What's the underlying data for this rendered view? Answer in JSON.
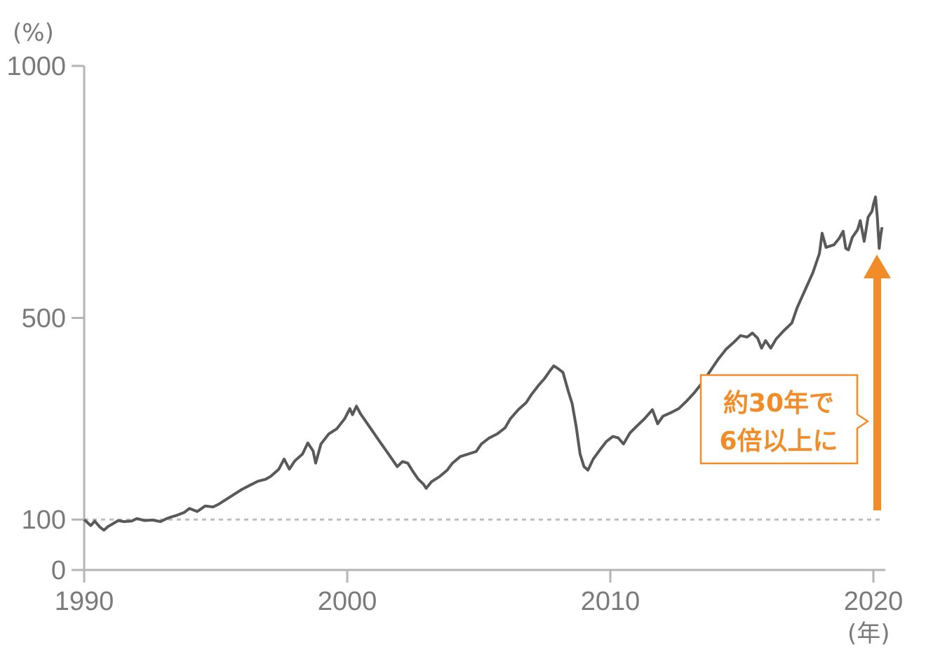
{
  "chart_data": {
    "type": "line",
    "y_unit": "(%)",
    "x_unit": "(年)",
    "ylim": [
      0,
      1000
    ],
    "xlim": [
      1990,
      2020.3
    ],
    "y_ticks": [
      {
        "value": 0,
        "label": "0"
      },
      {
        "value": 100,
        "label": "100"
      },
      {
        "value": 500,
        "label": "500"
      },
      {
        "value": 1000,
        "label": "1000"
      }
    ],
    "x_ticks": [
      {
        "value": 1990,
        "label": "1990"
      },
      {
        "value": 2000,
        "label": "2000"
      },
      {
        "value": 2010,
        "label": "2010"
      },
      {
        "value": 2020,
        "label": "2020"
      }
    ],
    "reference_line": 100,
    "grid": false,
    "series": [
      {
        "color": "#595959",
        "points": [
          [
            1990.0,
            100
          ],
          [
            1990.25,
            88
          ],
          [
            1990.4,
            97
          ],
          [
            1990.6,
            85
          ],
          [
            1990.75,
            79
          ],
          [
            1990.9,
            86
          ],
          [
            1991.1,
            92
          ],
          [
            1991.3,
            98
          ],
          [
            1991.5,
            96
          ],
          [
            1991.8,
            97
          ],
          [
            1992.0,
            102
          ],
          [
            1992.3,
            98
          ],
          [
            1992.6,
            99
          ],
          [
            1992.9,
            96
          ],
          [
            1993.1,
            101
          ],
          [
            1993.3,
            105
          ],
          [
            1993.5,
            108
          ],
          [
            1993.8,
            114
          ],
          [
            1994.0,
            122
          ],
          [
            1994.3,
            116
          ],
          [
            1994.6,
            127
          ],
          [
            1994.9,
            125
          ],
          [
            1995.1,
            130
          ],
          [
            1995.4,
            140
          ],
          [
            1995.7,
            150
          ],
          [
            1996.0,
            160
          ],
          [
            1996.3,
            168
          ],
          [
            1996.6,
            176
          ],
          [
            1996.9,
            180
          ],
          [
            1997.1,
            186
          ],
          [
            1997.4,
            200
          ],
          [
            1997.6,
            220
          ],
          [
            1997.8,
            200
          ],
          [
            1998.0,
            216
          ],
          [
            1998.3,
            230
          ],
          [
            1998.5,
            252
          ],
          [
            1998.7,
            236
          ],
          [
            1998.8,
            212
          ],
          [
            1999.0,
            250
          ],
          [
            1999.3,
            270
          ],
          [
            1999.6,
            280
          ],
          [
            1999.9,
            300
          ],
          [
            2000.0,
            310
          ],
          [
            2000.1,
            320
          ],
          [
            2000.2,
            308
          ],
          [
            2000.35,
            325
          ],
          [
            2000.5,
            310
          ],
          [
            2000.7,
            295
          ],
          [
            2000.9,
            280
          ],
          [
            2001.1,
            265
          ],
          [
            2001.3,
            250
          ],
          [
            2001.5,
            235
          ],
          [
            2001.7,
            220
          ],
          [
            2001.9,
            205
          ],
          [
            2002.1,
            215
          ],
          [
            2002.3,
            212
          ],
          [
            2002.5,
            195
          ],
          [
            2002.7,
            180
          ],
          [
            2002.9,
            170
          ],
          [
            2003.0,
            162
          ],
          [
            2003.2,
            175
          ],
          [
            2003.5,
            185
          ],
          [
            2003.8,
            198
          ],
          [
            2004.0,
            212
          ],
          [
            2004.3,
            225
          ],
          [
            2004.6,
            230
          ],
          [
            2004.9,
            235
          ],
          [
            2005.1,
            250
          ],
          [
            2005.4,
            262
          ],
          [
            2005.7,
            270
          ],
          [
            2006.0,
            282
          ],
          [
            2006.2,
            300
          ],
          [
            2006.5,
            318
          ],
          [
            2006.8,
            332
          ],
          [
            2007.0,
            348
          ],
          [
            2007.3,
            368
          ],
          [
            2007.5,
            380
          ],
          [
            2007.7,
            395
          ],
          [
            2007.85,
            405
          ],
          [
            2008.0,
            400
          ],
          [
            2008.2,
            392
          ],
          [
            2008.4,
            355
          ],
          [
            2008.55,
            330
          ],
          [
            2008.7,
            285
          ],
          [
            2008.85,
            230
          ],
          [
            2009.0,
            205
          ],
          [
            2009.15,
            198
          ],
          [
            2009.35,
            220
          ],
          [
            2009.6,
            238
          ],
          [
            2009.85,
            255
          ],
          [
            2010.1,
            265
          ],
          [
            2010.3,
            262
          ],
          [
            2010.5,
            250
          ],
          [
            2010.75,
            272
          ],
          [
            2011.0,
            285
          ],
          [
            2011.3,
            300
          ],
          [
            2011.6,
            318
          ],
          [
            2011.8,
            290
          ],
          [
            2012.0,
            305
          ],
          [
            2012.3,
            312
          ],
          [
            2012.6,
            320
          ],
          [
            2012.9,
            335
          ],
          [
            2013.2,
            352
          ],
          [
            2013.5,
            372
          ],
          [
            2013.8,
            395
          ],
          [
            2014.1,
            418
          ],
          [
            2014.4,
            438
          ],
          [
            2014.7,
            452
          ],
          [
            2014.95,
            465
          ],
          [
            2015.2,
            462
          ],
          [
            2015.4,
            470
          ],
          [
            2015.6,
            460
          ],
          [
            2015.75,
            440
          ],
          [
            2015.9,
            455
          ],
          [
            2016.1,
            440
          ],
          [
            2016.3,
            458
          ],
          [
            2016.6,
            475
          ],
          [
            2016.9,
            490
          ],
          [
            2017.1,
            520
          ],
          [
            2017.4,
            555
          ],
          [
            2017.7,
            590
          ],
          [
            2017.95,
            628
          ],
          [
            2018.05,
            668
          ],
          [
            2018.2,
            640
          ],
          [
            2018.5,
            645
          ],
          [
            2018.7,
            658
          ],
          [
            2018.85,
            672
          ],
          [
            2018.95,
            638
          ],
          [
            2019.05,
            635
          ],
          [
            2019.2,
            660
          ],
          [
            2019.4,
            675
          ],
          [
            2019.5,
            693
          ],
          [
            2019.65,
            652
          ],
          [
            2019.8,
            700
          ],
          [
            2019.95,
            712
          ],
          [
            2020.0,
            725
          ],
          [
            2020.08,
            740
          ],
          [
            2020.15,
            700
          ],
          [
            2020.22,
            638
          ],
          [
            2020.28,
            665
          ],
          [
            2020.33,
            680
          ]
        ]
      }
    ],
    "annotations": [
      {
        "lines": [
          "約30年で",
          "6倍以上に"
        ],
        "color": "#f28c28"
      }
    ]
  },
  "colors": {
    "line": "#595959",
    "axis": "#b5b5b5",
    "ref_line": "#bdbdbd",
    "text": "#7a7a7a",
    "accent": "#f28c28"
  }
}
